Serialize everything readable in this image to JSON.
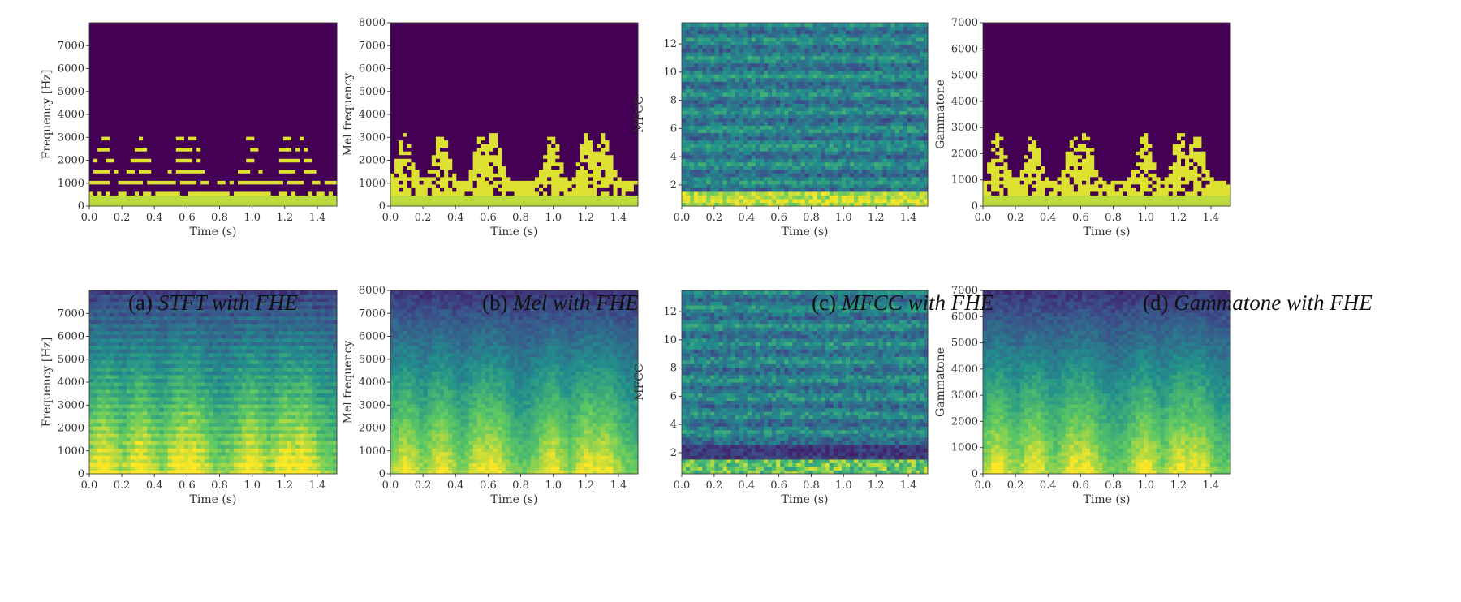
{
  "captions": [
    {
      "label": "(a)",
      "title": "STFT with FHE"
    },
    {
      "label": "(b)",
      "title": "Mel with FHE"
    },
    {
      "label": "(c)",
      "title": "MFCC with FHE"
    },
    {
      "label": "(d)",
      "title": "Gammatone with FHE"
    }
  ],
  "colormap": [
    "#440154",
    "#3b528b",
    "#21918c",
    "#5ec962",
    "#fde725"
  ],
  "chart_data": [
    {
      "type": "heatmap",
      "representation": "stft",
      "encrypted": true,
      "xlabel": "Time (s)",
      "ylabel": "Frequency [Hz]",
      "xlim": [
        0,
        1.52
      ],
      "ylim": [
        0,
        8000
      ],
      "xticks": [
        "0.0",
        "0.2",
        "0.4",
        "0.6",
        "0.8",
        "1.0",
        "1.2",
        "1.4"
      ],
      "yticks": [
        "0",
        "1000",
        "2000",
        "3000",
        "4000",
        "5000",
        "6000",
        "7000"
      ],
      "ytick_values": [
        0,
        1000,
        2000,
        3000,
        4000,
        5000,
        6000,
        7000
      ],
      "description": "binary mask; harmonics below ~3300 Hz"
    },
    {
      "type": "heatmap",
      "representation": "mel",
      "encrypted": true,
      "xlabel": "Time (s)",
      "ylabel": "Mel frequency",
      "xlim": [
        0,
        1.52
      ],
      "ylim": [
        0,
        8000
      ],
      "xticks": [
        "0.0",
        "0.2",
        "0.4",
        "0.6",
        "0.8",
        "1.0",
        "1.2",
        "1.4"
      ],
      "yticks": [
        "0",
        "1000",
        "2000",
        "3000",
        "4000",
        "5000",
        "6000",
        "7000",
        "8000"
      ],
      "ytick_values": [
        0,
        1000,
        2000,
        3000,
        4000,
        5000,
        6000,
        7000,
        8000
      ],
      "description": "binary mask; energy below ~3500"
    },
    {
      "type": "heatmap",
      "representation": "mfcc",
      "encrypted": true,
      "xlabel": "Time (s)",
      "ylabel": "MFCC",
      "xlim": [
        0,
        1.52
      ],
      "ylim": [
        0.5,
        13.5
      ],
      "xticks": [
        "0.0",
        "0.2",
        "0.4",
        "0.6",
        "0.8",
        "1.0",
        "1.2",
        "1.4"
      ],
      "yticks": [
        "2",
        "4",
        "6",
        "8",
        "10",
        "12"
      ],
      "ytick_values": [
        2,
        4,
        6,
        8,
        10,
        12
      ],
      "description": "13 coefficients"
    },
    {
      "type": "heatmap",
      "representation": "gammatone",
      "encrypted": true,
      "xlabel": "Time (s)",
      "ylabel": "Gammatone",
      "xlim": [
        0,
        1.52
      ],
      "ylim": [
        0,
        7000
      ],
      "xticks": [
        "0.0",
        "0.2",
        "0.4",
        "0.6",
        "0.8",
        "1.0",
        "1.2",
        "1.4"
      ],
      "yticks": [
        "0",
        "1000",
        "2000",
        "3000",
        "4000",
        "5000",
        "6000",
        "7000"
      ],
      "ytick_values": [
        0,
        1000,
        2000,
        3000,
        4000,
        5000,
        6000,
        7000
      ],
      "description": "binary mask"
    },
    {
      "type": "heatmap",
      "representation": "stft",
      "encrypted": false,
      "xlabel": "Time (s)",
      "ylabel": "Frequency [Hz]",
      "xlim": [
        0,
        1.52
      ],
      "ylim": [
        0,
        8000
      ],
      "xticks": [
        "0.0",
        "0.2",
        "0.4",
        "0.6",
        "0.8",
        "1.0",
        "1.2",
        "1.4"
      ],
      "yticks": [
        "0",
        "1000",
        "2000",
        "3000",
        "4000",
        "5000",
        "6000",
        "7000"
      ],
      "ytick_values": [
        0,
        1000,
        2000,
        3000,
        4000,
        5000,
        6000,
        7000
      ],
      "description": "continuous spectrogram"
    },
    {
      "type": "heatmap",
      "representation": "mel",
      "encrypted": false,
      "xlabel": "Time (s)",
      "ylabel": "Mel frequency",
      "xlim": [
        0,
        1.52
      ],
      "ylim": [
        0,
        8000
      ],
      "xticks": [
        "0.0",
        "0.2",
        "0.4",
        "0.6",
        "0.8",
        "1.0",
        "1.2",
        "1.4"
      ],
      "yticks": [
        "0",
        "1000",
        "2000",
        "3000",
        "4000",
        "5000",
        "6000",
        "7000",
        "8000"
      ],
      "ytick_values": [
        0,
        1000,
        2000,
        3000,
        4000,
        5000,
        6000,
        7000,
        8000
      ],
      "description": "continuous mel spectrogram"
    },
    {
      "type": "heatmap",
      "representation": "mfcc",
      "encrypted": false,
      "xlabel": "Time (s)",
      "ylabel": "MFCC",
      "xlim": [
        0,
        1.52
      ],
      "ylim": [
        0.5,
        13.5
      ],
      "xticks": [
        "0.0",
        "0.2",
        "0.4",
        "0.6",
        "0.8",
        "1.0",
        "1.2",
        "1.4"
      ],
      "yticks": [
        "2",
        "4",
        "6",
        "8",
        "10",
        "12"
      ],
      "ytick_values": [
        2,
        4,
        6,
        8,
        10,
        12
      ],
      "description": "13 coefficients"
    },
    {
      "type": "heatmap",
      "representation": "gammatone",
      "encrypted": false,
      "xlabel": "Time (s)",
      "ylabel": "Gammatone",
      "xlim": [
        0,
        1.52
      ],
      "ylim": [
        0,
        7000
      ],
      "xticks": [
        "0.0",
        "0.2",
        "0.4",
        "0.6",
        "0.8",
        "1.0",
        "1.2",
        "1.4"
      ],
      "yticks": [
        "0",
        "1000",
        "2000",
        "3000",
        "4000",
        "5000",
        "6000",
        "7000"
      ],
      "ytick_values": [
        0,
        1000,
        2000,
        3000,
        4000,
        5000,
        6000,
        7000
      ],
      "description": "continuous gammatone spectrogram"
    }
  ]
}
